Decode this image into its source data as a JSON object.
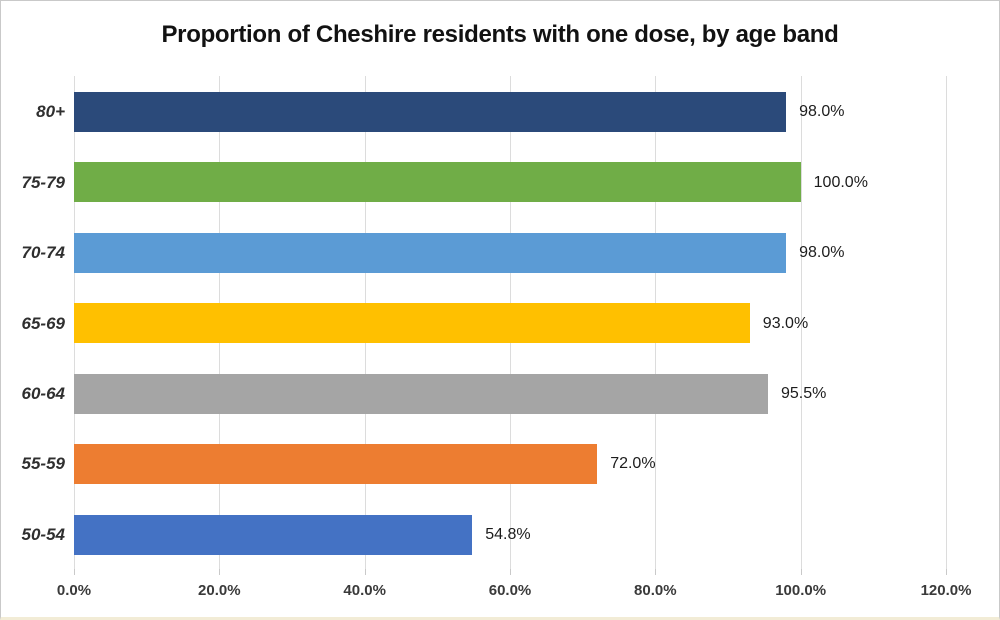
{
  "chart_data": {
    "type": "bar",
    "orientation": "horizontal",
    "title": "Proportion of Cheshire residents with one dose, by age band",
    "categories": [
      "80+",
      "75-79",
      "70-74",
      "65-69",
      "60-64",
      "55-59",
      "50-54"
    ],
    "values": [
      98.0,
      100.0,
      98.0,
      93.0,
      95.5,
      72.0,
      54.8
    ],
    "data_labels": [
      "98.0%",
      "100.0%",
      "98.0%",
      "93.0%",
      "95.5%",
      "72.0%",
      "54.8%"
    ],
    "bar_colors": [
      "#2b4a7a",
      "#70ad47",
      "#5b9bd5",
      "#ffc000",
      "#a5a5a5",
      "#ed7d31",
      "#4472c4"
    ],
    "xlabel": "",
    "ylabel": "",
    "xlim": [
      0,
      120
    ],
    "x_ticks": [
      0,
      20,
      40,
      60,
      80,
      100,
      120
    ],
    "x_tick_labels": [
      "0.0%",
      "20.0%",
      "40.0%",
      "60.0%",
      "80.0%",
      "100.0%",
      "120.0%"
    ],
    "grid": "vertical",
    "legend": "none",
    "colors": {
      "background": "#ffffff",
      "gridline": "#dcdcdc",
      "tick": "#c9c9c9",
      "title_text": "#121212",
      "category_text": "#2f2f2f",
      "axis_text": "#3a3a3a",
      "data_label_text": "#1c1c1c"
    }
  }
}
